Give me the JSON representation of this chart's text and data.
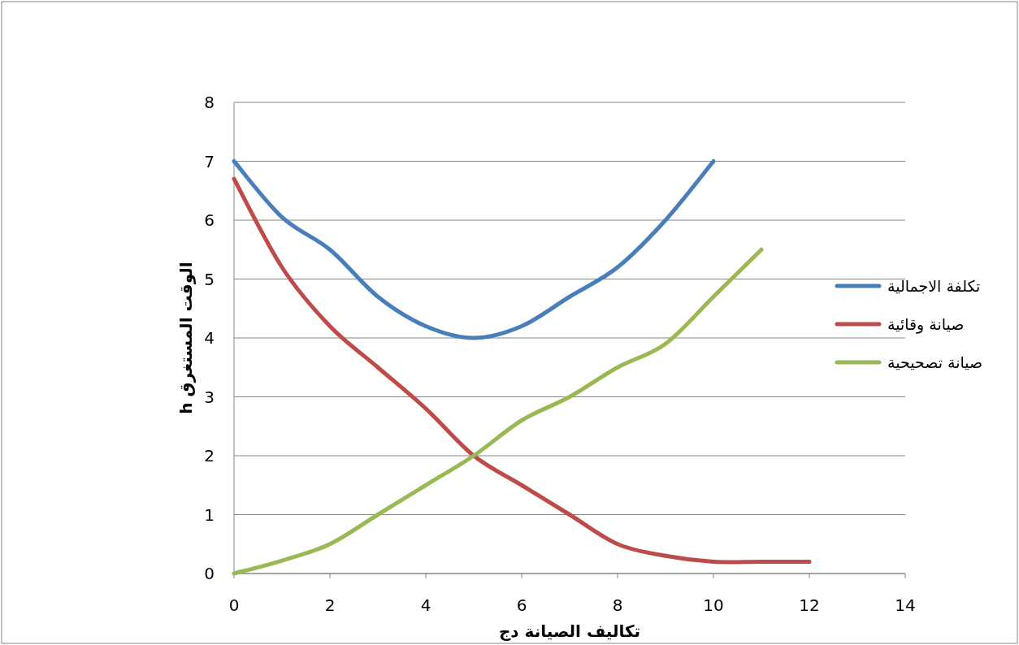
{
  "chart_data": {
    "type": "line",
    "xlabel": "تكاليف الصيانة دج",
    "ylabel": "الوقت المستغرق h",
    "xlim": [
      0,
      14
    ],
    "xticks": [
      0,
      2,
      4,
      6,
      8,
      10,
      12,
      14
    ],
    "ylim": [
      0,
      8
    ],
    "yticks": [
      0,
      1,
      2,
      3,
      4,
      5,
      6,
      7,
      8
    ],
    "grid": "y",
    "legend": "right",
    "marker": "none",
    "line_style": "solid",
    "series": [
      {
        "name": "تكلفة الاجمالية",
        "color": "#4a7ebb",
        "x": [
          0,
          1,
          2,
          3,
          4,
          5,
          6,
          7,
          8,
          9,
          10
        ],
        "values": [
          7,
          6.05,
          5.5,
          4.7,
          4.2,
          4.0,
          4.2,
          4.7,
          5.2,
          6.0,
          7.0
        ]
      },
      {
        "name": "صيانة وقائية",
        "color": "#be4b48",
        "x": [
          0,
          1,
          2,
          3,
          4,
          5,
          6,
          7,
          8,
          9,
          10,
          11,
          12
        ],
        "values": [
          6.7,
          5.2,
          4.2,
          3.5,
          2.8,
          2.0,
          1.5,
          1.0,
          0.5,
          0.3,
          0.2,
          0.2,
          0.2
        ]
      },
      {
        "name": "صيانة تصحيحية",
        "color": "#98b954",
        "x": [
          0,
          1,
          2,
          3,
          4,
          5,
          6,
          7,
          8,
          9,
          10,
          11
        ],
        "values": [
          0,
          0.22,
          0.5,
          1.0,
          1.5,
          2.0,
          2.6,
          3.0,
          3.5,
          3.9,
          4.7,
          5.5
        ]
      }
    ]
  }
}
